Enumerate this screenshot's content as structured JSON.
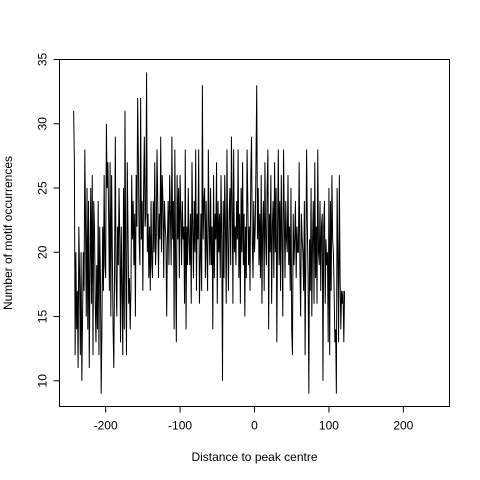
{
  "chart_data": {
    "type": "line",
    "title": "",
    "xlabel": "Distance to peak centre",
    "ylabel": "Number of motif occurrences",
    "xlim": [
      -262,
      262
    ],
    "ylim": [
      8,
      35
    ],
    "x_ticks": [
      -200,
      -100,
      0,
      100,
      200
    ],
    "x_tick_labels": [
      "-200",
      "-100",
      "0",
      "100",
      "200"
    ],
    "y_ticks": [
      10,
      15,
      20,
      25,
      30,
      35
    ],
    "y_tick_labels": [
      "10",
      "15",
      "20",
      "25",
      "30",
      "35"
    ],
    "grid": false,
    "line_color": "#000000",
    "x_start": -243,
    "x_step": 1,
    "series": [
      {
        "values": [
          31,
          27,
          12,
          20,
          14,
          17,
          11,
          22,
          18,
          12,
          20,
          10,
          15,
          20,
          17,
          28,
          22,
          15,
          25,
          14,
          24,
          11,
          19,
          25,
          16,
          26,
          12,
          24,
          22,
          16,
          13,
          19,
          14,
          24,
          12,
          22,
          18,
          9,
          14,
          22,
          17,
          26,
          19,
          18,
          30,
          25,
          27,
          23,
          17,
          27,
          15,
          26,
          20,
          14,
          11,
          19,
          29,
          18,
          15,
          22,
          19,
          25,
          21,
          13,
          22,
          17,
          12,
          25,
          14,
          31,
          19,
          12,
          27,
          22,
          16,
          18,
          14,
          17,
          26,
          21,
          24,
          19,
          23,
          15,
          26,
          22,
          32,
          27,
          21,
          19,
          32,
          21,
          24,
          17,
          25,
          29,
          22,
          23,
          34,
          20,
          23,
          18,
          22,
          17,
          24,
          19,
          18,
          24,
          20,
          27,
          19,
          21,
          28,
          24,
          18,
          23,
          21,
          29,
          20,
          26,
          24,
          18,
          24,
          22,
          21,
          15,
          21,
          24,
          19,
          26,
          23,
          19,
          29,
          21,
          24,
          14,
          28,
          19,
          13,
          26,
          21,
          25,
          18,
          26,
          23,
          19,
          24,
          21,
          22,
          16,
          28,
          14,
          22,
          19,
          25,
          21,
          19,
          23,
          16,
          27,
          22,
          18,
          24,
          20,
          28,
          17,
          23,
          21,
          28,
          16,
          19,
          23,
          17,
          33,
          21,
          24,
          25,
          18,
          24,
          20,
          17,
          28,
          22,
          19,
          25,
          19,
          22,
          14,
          26,
          18,
          23,
          21,
          27,
          16,
          24,
          20,
          23,
          18,
          26,
          21,
          10,
          24,
          18,
          26,
          22,
          16,
          28,
          21,
          17,
          23,
          25,
          19,
          29,
          24,
          16,
          28,
          20,
          22,
          19,
          24,
          21,
          28,
          18,
          23,
          16,
          25,
          20,
          27,
          19,
          23,
          15,
          22,
          18,
          28,
          24,
          19,
          22,
          17,
          26,
          29,
          21,
          18,
          24,
          20,
          22,
          27,
          33,
          21,
          25,
          19,
          23,
          18,
          26,
          16,
          22,
          24,
          17,
          27,
          21,
          19,
          25,
          28,
          14,
          23,
          20,
          26,
          16,
          22,
          24,
          18,
          27,
          20,
          25,
          13,
          22,
          28,
          19,
          24,
          17,
          26,
          21,
          15,
          28,
          23,
          18,
          24,
          21,
          20,
          26,
          19,
          22,
          17,
          25,
          14,
          12,
          23,
          19,
          21,
          24,
          18,
          22,
          20,
          20,
          27,
          19,
          15,
          23,
          21,
          20,
          17,
          24,
          12,
          20,
          28,
          22,
          18,
          9,
          21,
          17,
          25,
          15,
          21,
          24,
          16,
          27,
          18,
          22,
          16,
          28,
          20,
          19,
          24,
          17,
          22,
          23,
          10,
          22,
          24,
          16,
          21,
          19,
          20,
          13,
          25,
          12,
          24,
          17,
          26,
          21,
          20,
          17,
          13,
          14,
          9,
          25,
          20,
          13,
          26,
          18,
          14,
          17,
          16,
          17,
          13,
          17
        ]
      }
    ]
  }
}
